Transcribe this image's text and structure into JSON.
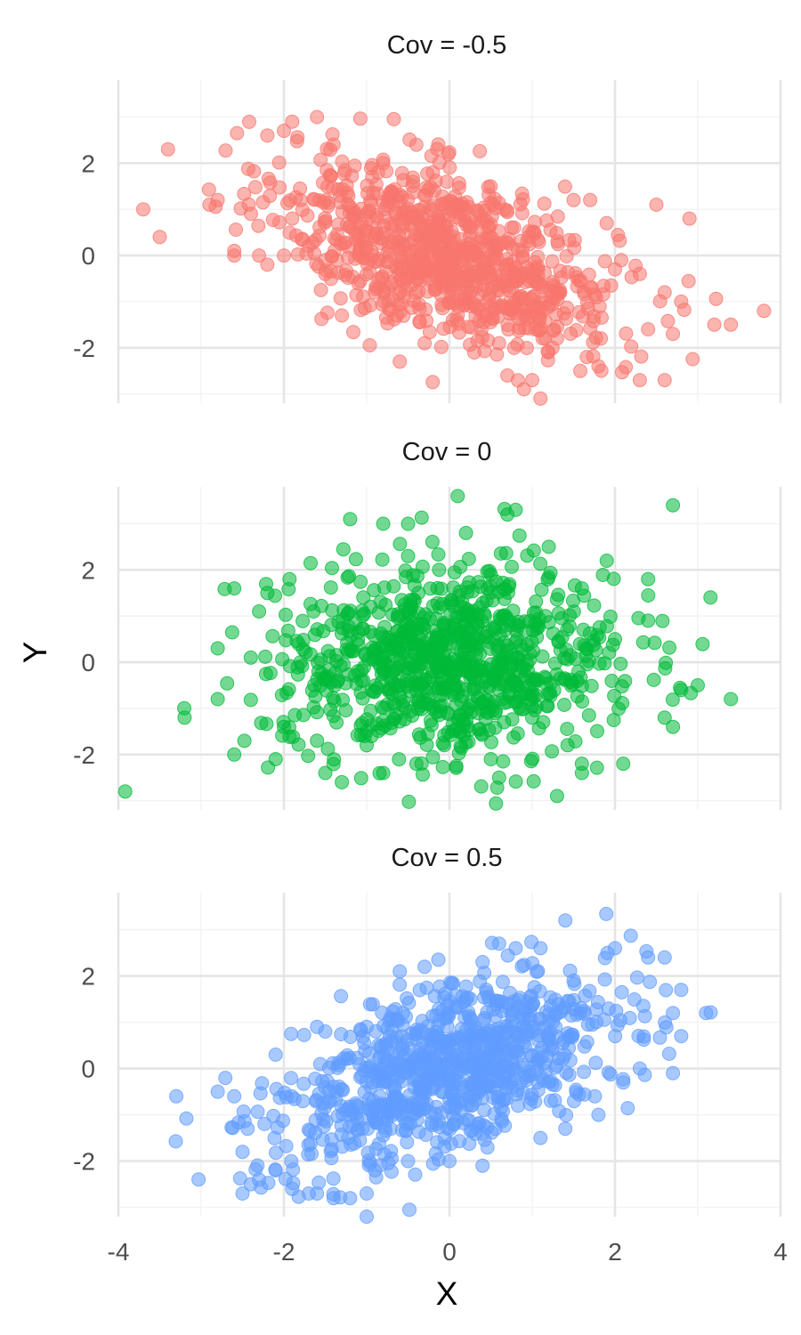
{
  "chart_data": {
    "type": "scatter",
    "xlabel": "X",
    "ylabel": "Y",
    "xlim": [
      -4,
      4
    ],
    "ylim": [
      -3.2,
      3.8
    ],
    "x_ticks": [
      -4,
      -2,
      0,
      2,
      4
    ],
    "x_tick_labels": [
      "-4",
      "-2",
      "0",
      "2",
      "4"
    ],
    "y_ticks": [
      -2,
      0,
      2
    ],
    "y_tick_labels": [
      "-2",
      "0",
      "2"
    ],
    "grid": true,
    "legend": "none",
    "panels": [
      {
        "title": "Cov = -0.5",
        "color": "#F8766D",
        "cov": -0.5,
        "points": [
          [
            -3.7,
            1.0
          ],
          [
            -3.5,
            0.4
          ],
          [
            -3.4,
            2.3
          ],
          [
            -2.8,
            1.2
          ],
          [
            -2.9,
            1.1
          ],
          [
            -2.6,
            0.0
          ],
          [
            -2.6,
            0.1
          ],
          [
            -2.3,
            0.0
          ],
          [
            -2.2,
            2.6
          ],
          [
            -2.0,
            2.7
          ],
          [
            -1.9,
            2.9
          ],
          [
            -1.6,
            3.0
          ],
          [
            -1.4,
            2.4
          ],
          [
            -2.0,
            -0.0
          ],
          [
            -1.5,
            -0.4
          ],
          [
            -1.3,
            -1.3
          ],
          [
            -0.9,
            -0.8
          ],
          [
            -0.6,
            -2.3
          ],
          [
            -0.3,
            -1.9
          ],
          [
            -0.4,
            2.4
          ],
          [
            0.9,
            -2.9
          ],
          [
            1.1,
            -3.1
          ],
          [
            1.0,
            -2.7
          ],
          [
            0.7,
            -2.6
          ],
          [
            1.8,
            -2.4
          ],
          [
            2.3,
            -2.7
          ],
          [
            2.6,
            -2.7
          ],
          [
            2.9,
            0.8
          ],
          [
            2.5,
            1.1
          ],
          [
            3.2,
            -1.5
          ],
          [
            3.4,
            -1.5
          ],
          [
            3.8,
            -1.2
          ],
          [
            2.8,
            -1.0
          ],
          [
            2.6,
            -0.8
          ],
          [
            2.7,
            -1.7
          ],
          [
            2.4,
            -1.6
          ],
          [
            2.0,
            -0.3
          ],
          [
            2.3,
            -0.4
          ],
          [
            1.7,
            1.2
          ],
          [
            1.9,
            0.7
          ],
          [
            1.5,
            1.2
          ],
          [
            0.3,
            -2.1
          ],
          [
            0.6,
            -1.9
          ],
          [
            1.3,
            -1.8
          ],
          [
            -0.2,
            1.8
          ],
          [
            -1.8,
            1.2
          ],
          [
            -1.9,
            0.8
          ],
          [
            -2.2,
            -0.2
          ],
          [
            -0.8,
            2.0
          ],
          [
            0.2,
            1.0
          ]
        ]
      },
      {
        "title": "Cov = 0",
        "color": "#00BA38",
        "cov": 0,
        "points": [
          [
            -3.2,
            -1.2
          ],
          [
            -2.8,
            0.3
          ],
          [
            -2.8,
            -0.8
          ],
          [
            -2.6,
            1.6
          ],
          [
            -2.6,
            -2.0
          ],
          [
            -2.2,
            1.5
          ],
          [
            -2.3,
            1.1
          ],
          [
            -2.4,
            0.1
          ],
          [
            -2.0,
            -1.4
          ],
          [
            -2.1,
            -2.1
          ],
          [
            -1.6,
            -1.7
          ],
          [
            -1.5,
            -2.4
          ],
          [
            -1.3,
            -2.6
          ],
          [
            -1.2,
            3.1
          ],
          [
            -1.0,
            -3.3
          ],
          [
            -0.8,
            3.0
          ],
          [
            -0.5,
            2.3
          ],
          [
            -0.5,
            3.0
          ],
          [
            0.1,
            3.6
          ],
          [
            0.2,
            2.8
          ],
          [
            0.7,
            3.2
          ],
          [
            0.8,
            3.3
          ],
          [
            1.2,
            2.5
          ],
          [
            1.9,
            2.2
          ],
          [
            2.7,
            3.4
          ],
          [
            2.4,
            1.8
          ],
          [
            2.4,
            0.9
          ],
          [
            3.4,
            -0.8
          ],
          [
            3.0,
            -0.5
          ],
          [
            2.8,
            -0.6
          ],
          [
            2.6,
            -1.2
          ],
          [
            2.7,
            -1.4
          ],
          [
            2.1,
            -2.2
          ],
          [
            1.6,
            -2.4
          ],
          [
            1.6,
            -2.2
          ],
          [
            1.3,
            -2.9
          ],
          [
            0.6,
            -2.5
          ],
          [
            0.5,
            -2.1
          ],
          [
            -0.4,
            -2.2
          ],
          [
            -0.8,
            -2.4
          ],
          [
            1.0,
            -1.2
          ],
          [
            -1.0,
            -1.8
          ],
          [
            0.5,
            1.9
          ],
          [
            -0.6,
            0.5
          ],
          [
            0.6,
            -0.6
          ],
          [
            1.6,
            1.6
          ],
          [
            -1.8,
            0.0
          ],
          [
            2.0,
            0.5
          ],
          [
            -0.2,
            -1.0
          ],
          [
            0.0,
            0.0
          ]
        ]
      },
      {
        "title": "Cov = 0.5",
        "color": "#619CFF",
        "cov": 0.5,
        "points": [
          [
            -3.3,
            -0.6
          ],
          [
            -2.8,
            -0.5
          ],
          [
            -2.6,
            -0.6
          ],
          [
            -2.5,
            -2.7
          ],
          [
            -2.4,
            -2.5
          ],
          [
            -2.3,
            -2.4
          ],
          [
            -2.5,
            -1.8
          ],
          [
            -2.1,
            -2.2
          ],
          [
            -1.9,
            -2.6
          ],
          [
            -1.7,
            -2.7
          ],
          [
            -1.6,
            -2.7
          ],
          [
            -1.4,
            -2.8
          ],
          [
            -1.2,
            -2.8
          ],
          [
            -1.0,
            -3.2
          ],
          [
            -1.0,
            -2.7
          ],
          [
            -0.9,
            -2.2
          ],
          [
            -0.5,
            -2.0
          ],
          [
            0.0,
            -2.0
          ],
          [
            0.4,
            -2.1
          ],
          [
            1.1,
            -1.5
          ],
          [
            1.4,
            -1.3
          ],
          [
            1.8,
            -1.0
          ],
          [
            2.1,
            -0.3
          ],
          [
            2.3,
            0.0
          ],
          [
            2.7,
            -0.1
          ],
          [
            2.8,
            0.7
          ],
          [
            3.1,
            1.2
          ],
          [
            2.7,
            1.2
          ],
          [
            2.8,
            1.7
          ],
          [
            2.6,
            2.4
          ],
          [
            2.4,
            2.4
          ],
          [
            2.0,
            2.6
          ],
          [
            1.4,
            3.2
          ],
          [
            1.1,
            2.6
          ],
          [
            0.6,
            2.7
          ],
          [
            0.8,
            2.6
          ],
          [
            0.4,
            2.3
          ],
          [
            -0.6,
            2.1
          ],
          [
            -0.3,
            2.2
          ],
          [
            -1.5,
            0.8
          ],
          [
            -2.1,
            0.3
          ],
          [
            -1.6,
            0.9
          ],
          [
            -1.0,
            0.9
          ],
          [
            0.2,
            1.5
          ],
          [
            0.7,
            0.9
          ],
          [
            1.5,
            1.9
          ],
          [
            -0.4,
            -0.8
          ],
          [
            0.3,
            0.4
          ],
          [
            -1.2,
            -1.0
          ],
          [
            1.0,
            0.8
          ]
        ]
      }
    ]
  }
}
